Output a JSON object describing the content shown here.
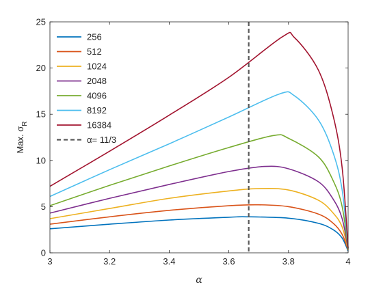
{
  "chart_data": {
    "type": "line",
    "title": "",
    "xlabel": "α",
    "ylabel": "Max. σ",
    "ylabel_subscript": "R",
    "xlim": [
      3,
      4
    ],
    "ylim": [
      0,
      25
    ],
    "xticks": [
      3,
      3.2,
      3.4,
      3.6,
      3.8,
      4
    ],
    "xtick_labels": [
      "3",
      "3.2",
      "3.4",
      "3.6",
      "3.8",
      "4"
    ],
    "yticks": [
      0,
      5,
      10,
      15,
      20,
      25
    ],
    "ytick_labels": [
      "0",
      "5",
      "10",
      "15",
      "20",
      "25"
    ],
    "grid": false,
    "legend_position": "top-left",
    "series": [
      {
        "name": "256",
        "color": "#0072BD",
        "points": [
          [
            3,
            2.6
          ],
          [
            3.2,
            3.1
          ],
          [
            3.4,
            3.55
          ],
          [
            3.6,
            3.85
          ],
          [
            3.66,
            3.9
          ],
          [
            3.8,
            3.75
          ],
          [
            3.9,
            3.2
          ],
          [
            3.95,
            2.5
          ],
          [
            3.98,
            1.6
          ],
          [
            4,
            0.2
          ]
        ]
      },
      {
        "name": "512",
        "color": "#D95319",
        "points": [
          [
            3,
            3.1
          ],
          [
            3.2,
            3.9
          ],
          [
            3.4,
            4.6
          ],
          [
            3.6,
            5.1
          ],
          [
            3.7,
            5.2
          ],
          [
            3.8,
            5.0
          ],
          [
            3.9,
            4.2
          ],
          [
            3.95,
            3.2
          ],
          [
            3.98,
            2.0
          ],
          [
            4,
            0.3
          ]
        ]
      },
      {
        "name": "1024",
        "color": "#EDB120",
        "points": [
          [
            3,
            3.7
          ],
          [
            3.2,
            4.8
          ],
          [
            3.4,
            5.9
          ],
          [
            3.6,
            6.7
          ],
          [
            3.7,
            6.95
          ],
          [
            3.8,
            6.8
          ],
          [
            3.9,
            5.7
          ],
          [
            3.95,
            4.3
          ],
          [
            3.98,
            2.8
          ],
          [
            4,
            0.3
          ]
        ]
      },
      {
        "name": "2048",
        "color": "#7E2F8E",
        "points": [
          [
            3,
            4.3
          ],
          [
            3.2,
            5.9
          ],
          [
            3.4,
            7.4
          ],
          [
            3.6,
            8.8
          ],
          [
            3.72,
            9.35
          ],
          [
            3.8,
            9.1
          ],
          [
            3.9,
            7.7
          ],
          [
            3.95,
            5.8
          ],
          [
            3.98,
            3.7
          ],
          [
            4,
            0.4
          ]
        ]
      },
      {
        "name": "4096",
        "color": "#77AC30",
        "points": [
          [
            3,
            5.1
          ],
          [
            3.2,
            7.3
          ],
          [
            3.4,
            9.4
          ],
          [
            3.6,
            11.4
          ],
          [
            3.75,
            12.7
          ],
          [
            3.8,
            12.4
          ],
          [
            3.9,
            10.4
          ],
          [
            3.95,
            7.8
          ],
          [
            3.98,
            5.0
          ],
          [
            4,
            0.4
          ]
        ]
      },
      {
        "name": "8192",
        "color": "#4DBEEE",
        "points": [
          [
            3,
            6.1
          ],
          [
            3.2,
            9.0
          ],
          [
            3.4,
            11.8
          ],
          [
            3.6,
            14.7
          ],
          [
            3.77,
            17.2
          ],
          [
            3.82,
            17.0
          ],
          [
            3.9,
            14.4
          ],
          [
            3.95,
            10.8
          ],
          [
            3.98,
            6.8
          ],
          [
            4,
            0.5
          ]
        ]
      },
      {
        "name": "16384",
        "color": "#A2142F",
        "points": [
          [
            3,
            7.2
          ],
          [
            3.2,
            11.0
          ],
          [
            3.4,
            14.9
          ],
          [
            3.6,
            19.0
          ],
          [
            3.78,
            23.4
          ],
          [
            3.82,
            23.3
          ],
          [
            3.9,
            19.8
          ],
          [
            3.95,
            14.8
          ],
          [
            3.98,
            9.2
          ],
          [
            4,
            0.5
          ]
        ]
      }
    ],
    "reference_line": {
      "name": "α= 11/3",
      "x": 3.6667,
      "color": "#595959",
      "style": "dashed"
    }
  }
}
